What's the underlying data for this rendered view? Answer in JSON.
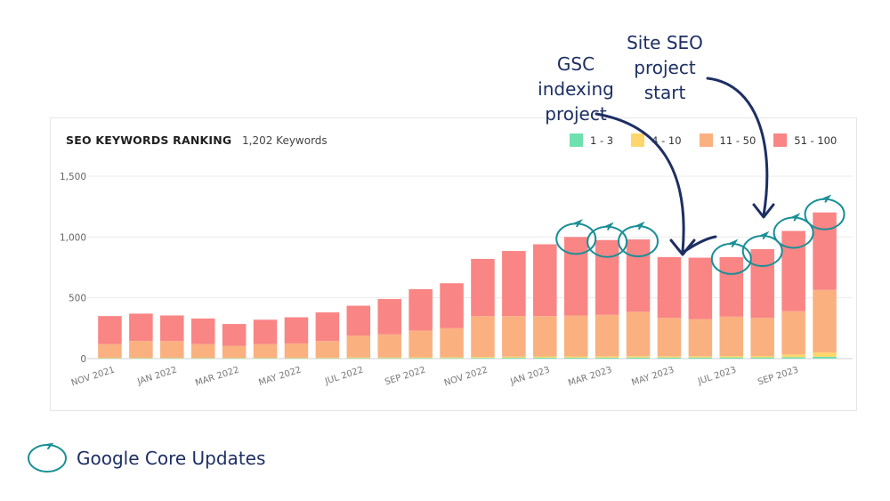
{
  "chart_data": {
    "type": "bar",
    "stacked": true,
    "title": "SEO KEYWORDS RANKING",
    "subtitle": "1,202 Keywords",
    "ylim": [
      0,
      1500
    ],
    "yticks": [
      "0",
      "500",
      "1,000",
      "1,500"
    ],
    "ytick_values": [
      0,
      500,
      1000,
      1500
    ],
    "categories": [
      "NOV 2021",
      "DEC 2021",
      "JAN 2022",
      "FEB 2022",
      "MAR 2022",
      "APR 2022",
      "MAY 2022",
      "JUN 2022",
      "JUL 2022",
      "AUG 2022",
      "SEP 2022",
      "OCT 2022",
      "NOV 2022",
      "DEC 2022",
      "JAN 2023",
      "FEB 2023",
      "MAR 2023",
      "APR 2023",
      "MAY 2023",
      "JUN 2023",
      "JUL 2023",
      "AUG 2023",
      "SEP 2023",
      "OCT 2023"
    ],
    "xtick_labels": [
      "NOV 2021",
      "JAN 2022",
      "MAR 2022",
      "MAY 2022",
      "JUL 2022",
      "SEP 2022",
      "NOV 2022",
      "JAN 2023",
      "MAR 2023",
      "MAY 2023",
      "JUL 2023",
      "SEP 2023"
    ],
    "legend_position": "top-right",
    "grid": true,
    "series": [
      {
        "name": "1 - 3",
        "color": "#6fe0b0",
        "values": [
          3,
          3,
          3,
          3,
          3,
          3,
          3,
          3,
          4,
          4,
          5,
          5,
          6,
          7,
          8,
          8,
          8,
          9,
          9,
          9,
          10,
          10,
          12,
          15
        ]
      },
      {
        "name": "4 - 10",
        "color": "#ffd66b",
        "values": [
          4,
          4,
          4,
          4,
          4,
          4,
          4,
          5,
          6,
          6,
          6,
          7,
          8,
          9,
          10,
          10,
          11,
          11,
          10,
          10,
          12,
          12,
          22,
          35
        ]
      },
      {
        "name": "11 - 50",
        "color": "#fbb080",
        "values": [
          113,
          138,
          138,
          113,
          98,
          113,
          118,
          137,
          180,
          190,
          220,
          238,
          336,
          334,
          332,
          337,
          341,
          365,
          316,
          306,
          323,
          313,
          356,
          515
        ]
      },
      {
        "name": "51 - 100",
        "color": "#f98585",
        "values": [
          230,
          225,
          210,
          210,
          180,
          200,
          215,
          235,
          245,
          290,
          340,
          370,
          470,
          535,
          590,
          645,
          615,
          595,
          500,
          505,
          490,
          565,
          660,
          637
        ]
      }
    ],
    "core_update_months": [
      "FEB 2023",
      "MAR 2023",
      "APR 2023",
      "JUL 2023",
      "AUG 2023",
      "SEP 2023",
      "OCT 2023"
    ]
  },
  "annotations": {
    "gsc": "GSC\nindexing\nproject",
    "site_seo": "Site SEO\nproject\nstart"
  },
  "bottom_legend": {
    "label": "Google Core Updates",
    "icon": "circle-icon",
    "color": "#1a8f96"
  },
  "colors": {
    "annotation_text": "#1d2f63",
    "annotation_arrow": "#1d2f63",
    "core_update_circle": "#1a8f96"
  }
}
